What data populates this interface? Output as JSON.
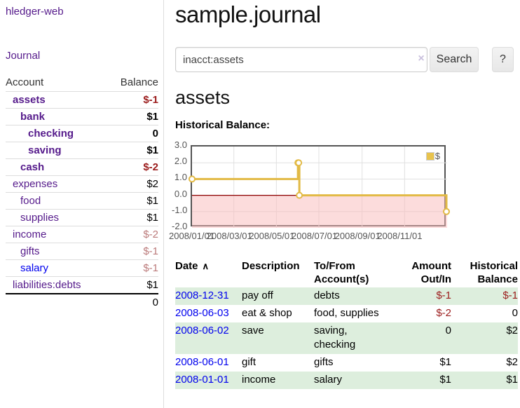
{
  "app": {
    "brand": "hledger-web"
  },
  "sidebar": {
    "nav_journal": "Journal",
    "accounts": {
      "col_account": "Account",
      "col_balance": "Balance",
      "rows": [
        {
          "name": "assets",
          "balance": "$-1"
        },
        {
          "name": "bank",
          "balance": "$1"
        },
        {
          "name": "checking",
          "balance": "0"
        },
        {
          "name": "saving",
          "balance": "$1"
        },
        {
          "name": "cash",
          "balance": "$-2"
        },
        {
          "name": "expenses",
          "balance": "$2"
        },
        {
          "name": "food",
          "balance": "$1"
        },
        {
          "name": "supplies",
          "balance": "$1"
        },
        {
          "name": "income",
          "balance": "$-2"
        },
        {
          "name": "gifts",
          "balance": "$-1"
        },
        {
          "name": "salary",
          "balance": "$-1"
        },
        {
          "name": "liabilities:debts",
          "balance": "$1"
        }
      ],
      "total": "0"
    }
  },
  "main": {
    "title": "sample.journal",
    "search": {
      "value": "inacct:assets",
      "clear_icon": "×",
      "search_label": "Search",
      "help_label": "?"
    },
    "account_heading": "assets",
    "chart_heading": "Historical Balance:"
  },
  "chart_data": {
    "type": "line",
    "style": "step",
    "title": "Historical Balance",
    "series": [
      {
        "name": "$",
        "x": [
          "2008-01-01",
          "2008-06-01",
          "2008-06-02",
          "2008-06-03",
          "2008-12-31"
        ],
        "y": [
          1,
          2,
          2,
          0,
          -1
        ]
      }
    ],
    "x_ticks": [
      "2008/01/01",
      "2008/03/01",
      "2008/05/01",
      "2008/07/01",
      "2008/09/01",
      "2008/11/01"
    ],
    "y_ticks": [
      "3.0",
      "2.0",
      "1.0",
      "0.0",
      "-1.0",
      "-2.0"
    ],
    "xlim": [
      "2008-01-01",
      "2009-01-01"
    ],
    "ylim": [
      -2,
      3
    ],
    "grid": true,
    "legend": {
      "position": "top-right",
      "entries": [
        "$"
      ]
    },
    "colors": {
      "line": "#e2ba45",
      "marker_fill": "#ffffff",
      "negative_region": "#f9b9b9",
      "zero_line": "#8b0000",
      "grid": "#e0e0e0",
      "border": "#545454",
      "tick_text": "#545454"
    }
  },
  "register": {
    "headers": {
      "date": "Date",
      "sort_icon": "∧",
      "description": "Description",
      "accounts": "To/From Account(s)",
      "amount": "Amount Out/In",
      "balance": "Historical Balance"
    },
    "rows": [
      {
        "date": "2008-12-31",
        "description": "pay off",
        "accounts": "debts",
        "amount": "$-1",
        "balance": "$-1"
      },
      {
        "date": "2008-06-03",
        "description": "eat & shop",
        "accounts": "food, supplies",
        "amount": "$-2",
        "balance": "0"
      },
      {
        "date": "2008-06-02",
        "description": "save",
        "accounts": "saving, checking",
        "amount": "0",
        "balance": "$2"
      },
      {
        "date": "2008-06-01",
        "description": "gift",
        "accounts": "gifts",
        "amount": "$1",
        "balance": "$2"
      },
      {
        "date": "2008-01-01",
        "description": "income",
        "accounts": "salary",
        "amount": "$1",
        "balance": "$1"
      }
    ]
  }
}
